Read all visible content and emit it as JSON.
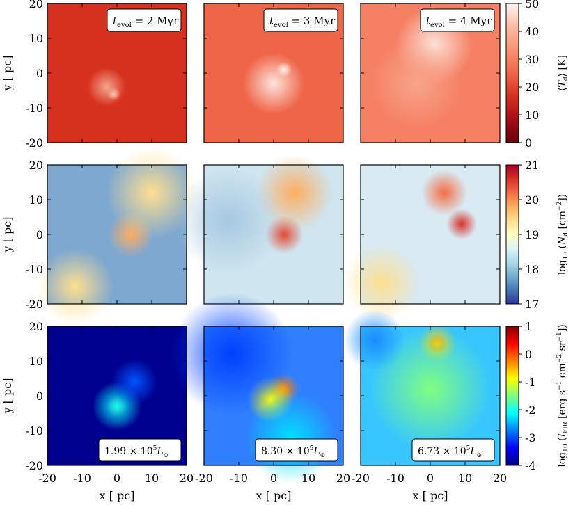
{
  "figure": {
    "rows": [
      {
        "id": "dust-temperature",
        "colorbar": {
          "label_var": "⟨T",
          "label_sub": "d",
          "label_rest": "⟩ [K]",
          "ticks": [
            "0",
            "10",
            "20",
            "30",
            "40",
            "50"
          ],
          "range": [
            0,
            50
          ],
          "stops": [
            "#67000d",
            "#a50f15",
            "#d7301f",
            "#ef6548",
            "#fc9272",
            "#fcbba1",
            "#fff5f0"
          ]
        },
        "panels": [
          {
            "label_var": "t",
            "label_sub": "evol",
            "label_rest": " = 2 Myr",
            "base": "#d7321f",
            "blobs": [
              {
                "x": -1,
                "y": -6,
                "color": "#fde4dc",
                "r": 0.9
              },
              {
                "x": -3,
                "y": -4,
                "color": "#f4a58c",
                "r": 2.5
              }
            ]
          },
          {
            "label_var": "t",
            "label_sub": "evol",
            "label_rest": " = 3 Myr",
            "base": "#ef6548",
            "blobs": [
              {
                "x": 0,
                "y": -3,
                "color": "#fde4dc",
                "r": 4
              },
              {
                "x": 3,
                "y": 1,
                "color": "#fff5f0",
                "r": 1
              }
            ]
          },
          {
            "label_var": "t",
            "label_sub": "evol",
            "label_rest": " = 4 Myr",
            "base": "#f58064",
            "blobs": [
              {
                "x": 1,
                "y": 8,
                "color": "#fde4dc",
                "r": 5
              },
              {
                "x": -4,
                "y": -3,
                "color": "#f9a48a",
                "r": 6
              }
            ]
          }
        ]
      },
      {
        "id": "dust-column-density",
        "colorbar": {
          "label_pre": "log",
          "label_pre_sub": "10",
          "label_var": " (N",
          "label_sub": "d",
          "label_rest": " [cm",
          "label_sup": "−2",
          "label_end": "])",
          "ticks": [
            "17",
            "18",
            "19",
            "20",
            "21"
          ],
          "range": [
            17,
            21
          ],
          "stops": [
            "#313695",
            "#4575b4",
            "#74add1",
            "#abd9e9",
            "#e0f3f8",
            "#ffffbf",
            "#fee090",
            "#fdae61",
            "#f46d43",
            "#d73027",
            "#a50026"
          ]
        },
        "panels": [
          {
            "base": "#7ea8d0",
            "blobs": [
              {
                "x": 4,
                "y": 0,
                "color": "#fdae61",
                "r": 3
              },
              {
                "x": 10,
                "y": 12,
                "color": "#fee090",
                "r": 6
              },
              {
                "x": -12,
                "y": -15,
                "color": "#fee090",
                "r": 5
              }
            ]
          },
          {
            "base": "#cfe5ef",
            "blobs": [
              {
                "x": 3,
                "y": 0,
                "color": "#e34a33",
                "r": 2.5
              },
              {
                "x": 6,
                "y": 12,
                "color": "#fdae61",
                "r": 5
              },
              {
                "x": -13,
                "y": 4,
                "color": "#a6c8e0",
                "r": 7
              }
            ]
          },
          {
            "base": "#d9eaf3",
            "blobs": [
              {
                "x": 4,
                "y": 12,
                "color": "#f46d43",
                "r": 3
              },
              {
                "x": 9,
                "y": 3,
                "color": "#d73027",
                "r": 2
              },
              {
                "x": -14,
                "y": -14,
                "color": "#fee090",
                "r": 5
              }
            ]
          }
        ]
      },
      {
        "id": "fir-intensity",
        "colorbar": {
          "label_pre": "log",
          "label_pre_sub": "10",
          "label_var": " (I",
          "label_sub": "FIR",
          "label_rest": " [erg s",
          "label_sup": "−1",
          "label_mid": " cm",
          "label_sup2": "−2",
          "label_mid2": " sr",
          "label_sup3": "−1",
          "label_end": "])",
          "ticks": [
            "-4",
            "-3",
            "-2",
            "-1",
            "0",
            "1"
          ],
          "range": [
            -4,
            1
          ],
          "stops": [
            "#00007f",
            "#0000ff",
            "#007fff",
            "#00ffff",
            "#7fff7f",
            "#ffff00",
            "#ff7f00",
            "#ff0000",
            "#7f0000"
          ]
        },
        "panels": [
          {
            "luminosity_value": "1.99 × 10",
            "luminosity_exp": "5",
            "luminosity_unit": "L",
            "luminosity_sub": "⊙",
            "base": "#00008f",
            "blobs": [
              {
                "x": 0,
                "y": -3,
                "color": "#ff2a00",
                "r": 1.3
              },
              {
                "x": 0,
                "y": -3,
                "color": "#00ffff",
                "r": 3.2
              },
              {
                "x": 5,
                "y": 4,
                "color": "#0055ff",
                "r": 3
              }
            ]
          },
          {
            "luminosity_value": "8.30 × 10",
            "luminosity_exp": "5",
            "luminosity_unit": "L",
            "luminosity_sub": "⊙",
            "base": "#2f7fff",
            "blobs": [
              {
                "x": 3,
                "y": 2,
                "color": "#ff7f00",
                "r": 2
              },
              {
                "x": -1,
                "y": -1,
                "color": "#ffff00",
                "r": 3
              },
              {
                "x": -12,
                "y": 12,
                "color": "#0040ff",
                "r": 8
              },
              {
                "x": 5,
                "y": -12,
                "color": "#00e0ff",
                "r": 6
              }
            ]
          },
          {
            "luminosity_value": "6.73 × 10",
            "luminosity_exp": "5",
            "luminosity_unit": "L",
            "luminosity_sub": "⊙",
            "base": "#37c6ff",
            "blobs": [
              {
                "x": 2,
                "y": 15,
                "color": "#ff1a00",
                "r": 1.2
              },
              {
                "x": 2,
                "y": 15,
                "color": "#ffcc00",
                "r": 2.5
              },
              {
                "x": 0,
                "y": 2,
                "color": "#80ff80",
                "r": 8
              },
              {
                "x": -16,
                "y": 16,
                "color": "#1a8cff",
                "r": 4
              }
            ]
          }
        ]
      }
    ],
    "axes": {
      "xlabel": "x [ pc]",
      "ylabel": "y [ pc]",
      "xticks": [
        "-20",
        "-10",
        "0",
        "10",
        "20"
      ],
      "yticks": [
        "20",
        "10",
        "0",
        "-10",
        "-20"
      ],
      "range": [
        -20,
        20
      ]
    }
  },
  "chart_data": {
    "type": "heatmap",
    "title": "",
    "xlabel": "x [ pc]",
    "ylabel": "y [ pc]",
    "xlim": [
      -20,
      20
    ],
    "ylim": [
      -20,
      20
    ],
    "columns": [
      "t_evol = 2 Myr",
      "t_evol = 3 Myr",
      "t_evol = 4 Myr"
    ],
    "rows": [
      {
        "quantity": "⟨T_d⟩ [K]",
        "colorbar_range": [
          0,
          50
        ],
        "colormap": "Reds_r"
      },
      {
        "quantity": "log10 (N_d [cm^-2])",
        "colorbar_range": [
          17,
          21
        ],
        "colormap": "RdYlBu_r"
      },
      {
        "quantity": "log10 (I_FIR [erg s^-1 cm^-2 sr^-1])",
        "colorbar_range": [
          -4,
          1
        ],
        "colormap": "jet"
      }
    ],
    "luminosities": [
      "1.99 × 10^5 L_⊙",
      "8.30 × 10^5 L_⊙",
      "6.73 × 10^5 L_⊙"
    ]
  }
}
